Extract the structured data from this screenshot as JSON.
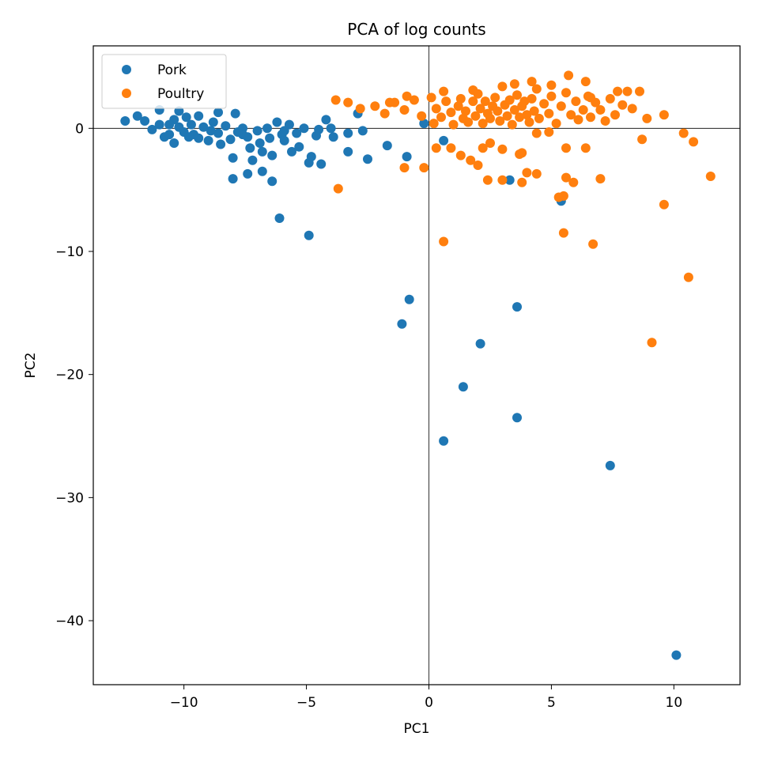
{
  "chart_data": {
    "type": "scatter",
    "title": "PCA of log counts",
    "xlabel": "PC1",
    "ylabel": "PC2",
    "xlim": [
      -13.7,
      12.7
    ],
    "ylim": [
      -45.2,
      6.7
    ],
    "xticks": [
      -10,
      -5,
      0,
      5,
      10
    ],
    "yticks": [
      0,
      -10,
      -20,
      -30,
      -40
    ],
    "xtick_labels": [
      "−10",
      "−5",
      "0",
      "5",
      "10"
    ],
    "ytick_labels": [
      "0",
      "−10",
      "−20",
      "−30",
      "−40"
    ],
    "grid": false,
    "reference_lines": {
      "x": 0,
      "y": 0
    },
    "legend": {
      "position": "top-left"
    },
    "series": [
      {
        "name": "Pork",
        "color": "#1f77b4",
        "points": [
          [
            -12.4,
            0.6
          ],
          [
            -11.9,
            1.0
          ],
          [
            -11.6,
            0.6
          ],
          [
            -11.3,
            -0.1
          ],
          [
            -11.0,
            0.3
          ],
          [
            -10.8,
            -0.7
          ],
          [
            -10.6,
            -0.5
          ],
          [
            -10.4,
            0.7
          ],
          [
            -10.2,
            0.1
          ],
          [
            -10.0,
            -0.3
          ],
          [
            -10.4,
            -1.2
          ],
          [
            -9.9,
            0.9
          ],
          [
            -9.7,
            0.3
          ],
          [
            -9.6,
            -0.5
          ],
          [
            -9.4,
            -0.8
          ],
          [
            -9.2,
            0.1
          ],
          [
            -9.0,
            -1.0
          ],
          [
            -8.8,
            0.5
          ],
          [
            -8.6,
            -0.4
          ],
          [
            -8.5,
            -1.3
          ],
          [
            -8.3,
            0.2
          ],
          [
            -8.1,
            -0.9
          ],
          [
            -8.0,
            -2.4
          ],
          [
            -7.8,
            -0.3
          ],
          [
            -7.6,
            0.0
          ],
          [
            -7.4,
            -0.7
          ],
          [
            -7.3,
            -1.6
          ],
          [
            -7.2,
            -2.6
          ],
          [
            -7.0,
            -0.2
          ],
          [
            -6.9,
            -1.2
          ],
          [
            -6.8,
            -1.9
          ],
          [
            -6.6,
            0.0
          ],
          [
            -6.5,
            -0.8
          ],
          [
            -6.4,
            -2.2
          ],
          [
            -6.2,
            0.5
          ],
          [
            -6.0,
            -0.5
          ],
          [
            -5.9,
            -1.0
          ],
          [
            -5.7,
            0.3
          ],
          [
            -5.6,
            -1.9
          ],
          [
            -5.4,
            -0.4
          ],
          [
            -5.3,
            -1.5
          ],
          [
            -5.1,
            0.0
          ],
          [
            -4.9,
            -2.8
          ],
          [
            -4.8,
            -2.3
          ],
          [
            -4.6,
            -0.6
          ],
          [
            -4.4,
            -2.9
          ],
          [
            -4.2,
            0.7
          ],
          [
            -4.0,
            0.0
          ],
          [
            -3.9,
            -0.7
          ],
          [
            -3.3,
            -1.9
          ],
          [
            -3.3,
            -0.4
          ],
          [
            -2.9,
            1.2
          ],
          [
            -2.7,
            -0.2
          ],
          [
            -2.5,
            -2.5
          ],
          [
            -1.7,
            -1.4
          ],
          [
            -0.9,
            -2.3
          ],
          [
            -0.2,
            0.4
          ],
          [
            0.6,
            -1.0
          ],
          [
            -8.0,
            -4.1
          ],
          [
            -7.4,
            -3.7
          ],
          [
            -6.8,
            -3.5
          ],
          [
            -6.4,
            -4.3
          ],
          [
            -6.1,
            -7.3
          ],
          [
            -4.9,
            -8.7
          ],
          [
            -0.8,
            -13.9
          ],
          [
            -1.1,
            -15.9
          ],
          [
            3.6,
            -14.5
          ],
          [
            2.1,
            -17.5
          ],
          [
            1.4,
            -21.0
          ],
          [
            3.6,
            -23.5
          ],
          [
            0.6,
            -25.4
          ],
          [
            7.4,
            -27.4
          ],
          [
            10.1,
            -42.8
          ],
          [
            3.3,
            -4.2
          ],
          [
            5.4,
            -5.9
          ],
          [
            -11.0,
            1.5
          ],
          [
            -10.2,
            1.4
          ],
          [
            -9.4,
            1.0
          ],
          [
            -8.6,
            1.3
          ],
          [
            -7.9,
            1.2
          ],
          [
            -7.6,
            -0.5
          ],
          [
            -8.9,
            -0.2
          ],
          [
            -9.8,
            -0.7
          ],
          [
            -10.6,
            0.3
          ],
          [
            -5.9,
            -0.2
          ],
          [
            -4.5,
            -0.1
          ]
        ]
      },
      {
        "name": "Poultry",
        "color": "#ff7f0e",
        "points": [
          [
            -3.8,
            2.3
          ],
          [
            -3.3,
            2.1
          ],
          [
            -2.8,
            1.6
          ],
          [
            -2.2,
            1.8
          ],
          [
            -1.8,
            1.2
          ],
          [
            -1.4,
            2.1
          ],
          [
            -1.0,
            1.5
          ],
          [
            -0.6,
            2.3
          ],
          [
            -0.3,
            1.0
          ],
          [
            0.1,
            2.5
          ],
          [
            0.2,
            0.4
          ],
          [
            0.3,
            1.6
          ],
          [
            0.5,
            0.9
          ],
          [
            0.7,
            2.2
          ],
          [
            0.9,
            1.3
          ],
          [
            1.0,
            0.3
          ],
          [
            1.2,
            1.8
          ],
          [
            1.3,
            2.4
          ],
          [
            1.4,
            0.8
          ],
          [
            1.5,
            1.4
          ],
          [
            1.6,
            0.5
          ],
          [
            1.8,
            2.2
          ],
          [
            1.9,
            1.0
          ],
          [
            2.0,
            2.8
          ],
          [
            2.1,
            1.6
          ],
          [
            2.2,
            0.4
          ],
          [
            2.3,
            2.2
          ],
          [
            2.4,
            1.2
          ],
          [
            2.5,
            0.8
          ],
          [
            2.6,
            1.8
          ],
          [
            2.7,
            2.5
          ],
          [
            2.8,
            1.4
          ],
          [
            2.9,
            0.6
          ],
          [
            3.0,
            3.4
          ],
          [
            3.1,
            1.9
          ],
          [
            3.2,
            1.0
          ],
          [
            3.3,
            2.3
          ],
          [
            3.4,
            0.3
          ],
          [
            3.5,
            1.5
          ],
          [
            3.6,
            2.7
          ],
          [
            3.7,
            0.9
          ],
          [
            3.8,
            1.8
          ],
          [
            3.9,
            2.2
          ],
          [
            4.0,
            1.1
          ],
          [
            4.1,
            0.5
          ],
          [
            4.2,
            2.4
          ],
          [
            4.3,
            1.4
          ],
          [
            4.4,
            3.2
          ],
          [
            4.5,
            0.8
          ],
          [
            4.7,
            2.0
          ],
          [
            4.9,
            1.2
          ],
          [
            5.0,
            2.6
          ],
          [
            5.2,
            0.4
          ],
          [
            5.4,
            1.8
          ],
          [
            5.6,
            2.9
          ],
          [
            5.8,
            1.1
          ],
          [
            6.0,
            2.2
          ],
          [
            6.1,
            0.7
          ],
          [
            6.3,
            1.5
          ],
          [
            6.5,
            2.6
          ],
          [
            6.6,
            0.9
          ],
          [
            6.8,
            2.1
          ],
          [
            7.0,
            1.5
          ],
          [
            7.2,
            0.6
          ],
          [
            7.4,
            2.4
          ],
          [
            7.6,
            1.1
          ],
          [
            7.9,
            1.9
          ],
          [
            8.1,
            3.0
          ],
          [
            8.3,
            1.6
          ],
          [
            8.6,
            3.0
          ],
          [
            8.9,
            0.8
          ],
          [
            9.6,
            1.1
          ],
          [
            10.4,
            -0.4
          ],
          [
            10.8,
            -1.1
          ],
          [
            11.5,
            -3.9
          ],
          [
            8.7,
            -0.9
          ],
          [
            9.6,
            -6.2
          ],
          [
            10.6,
            -12.1
          ],
          [
            9.1,
            -17.4
          ],
          [
            6.7,
            -9.4
          ],
          [
            7.0,
            -4.1
          ],
          [
            5.5,
            -8.5
          ],
          [
            5.6,
            -4.0
          ],
          [
            5.9,
            -4.4
          ],
          [
            5.3,
            -5.6
          ],
          [
            5.5,
            -5.5
          ],
          [
            4.4,
            -3.7
          ],
          [
            4.0,
            -3.6
          ],
          [
            3.8,
            -4.4
          ],
          [
            3.0,
            -4.2
          ],
          [
            2.4,
            -4.2
          ],
          [
            3.8,
            -2.0
          ],
          [
            4.4,
            -0.4
          ],
          [
            4.9,
            -0.3
          ],
          [
            5.6,
            -1.6
          ],
          [
            6.4,
            -1.6
          ],
          [
            0.6,
            -9.2
          ],
          [
            0.3,
            -1.6
          ],
          [
            -0.2,
            -3.2
          ],
          [
            -1.0,
            -3.2
          ],
          [
            -3.7,
            -4.9
          ],
          [
            1.3,
            -2.2
          ],
          [
            1.7,
            -2.6
          ],
          [
            2.0,
            -3.0
          ],
          [
            2.2,
            -1.6
          ],
          [
            2.5,
            -1.2
          ],
          [
            3.0,
            -1.7
          ],
          [
            3.7,
            -2.1
          ],
          [
            0.9,
            -1.6
          ],
          [
            5.7,
            4.3
          ],
          [
            4.2,
            3.8
          ],
          [
            6.4,
            3.8
          ],
          [
            7.7,
            3.0
          ],
          [
            -1.6,
            2.1
          ],
          [
            -0.9,
            2.6
          ],
          [
            0.6,
            3.0
          ],
          [
            1.8,
            3.1
          ],
          [
            3.5,
            3.6
          ],
          [
            5.0,
            3.5
          ],
          [
            6.6,
            2.5
          ]
        ]
      }
    ]
  }
}
